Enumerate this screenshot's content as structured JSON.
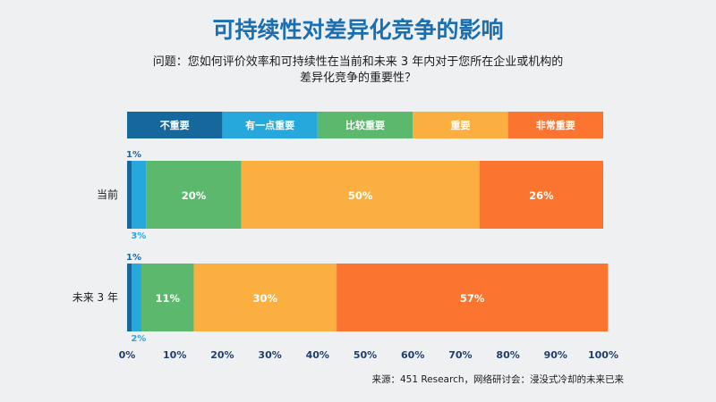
{
  "title": "可持续性对差异化竞争的影响",
  "question_line1": "问题：您如何评价效率和可持续性在当前和未来 3 年内对于您所在企业或机构的",
  "question_line2": "差异化竞争的重要性？",
  "source": "来源：451 Research，网络研讨会：浸没式冷却的未来已来",
  "colors": {
    "not_important": "#16679c",
    "somewhat": "#26a8dc",
    "fairly": "#5cb86c",
    "important": "#fbaf41",
    "very": "#fb7530"
  },
  "chart_data": {
    "type": "bar",
    "orientation": "horizontal-stacked",
    "categories": [
      "当前",
      "未来 3 年"
    ],
    "series": [
      {
        "name": "不重要",
        "values": [
          1,
          1
        ],
        "color": "#16679c"
      },
      {
        "name": "有一点重要",
        "values": [
          3,
          2
        ],
        "color": "#26a8dc"
      },
      {
        "name": "比较重要",
        "values": [
          20,
          11
        ],
        "color": "#5cb86c"
      },
      {
        "name": "重要",
        "values": [
          50,
          30
        ],
        "color": "#fbaf41"
      },
      {
        "name": "非常重要",
        "values": [
          26,
          57
        ],
        "color": "#fb7530"
      }
    ],
    "data_labels": [
      [
        "1%",
        "3%",
        "20%",
        "50%",
        "26%"
      ],
      [
        "1%",
        "2%",
        "11%",
        "30%",
        "57%"
      ]
    ],
    "x_ticks": [
      "0%",
      "10%",
      "20%",
      "30%",
      "40%",
      "50%",
      "60%",
      "70%",
      "80%",
      "90%",
      "100%"
    ],
    "xlim": [
      0,
      100
    ],
    "legend_position": "top",
    "grid": false
  }
}
